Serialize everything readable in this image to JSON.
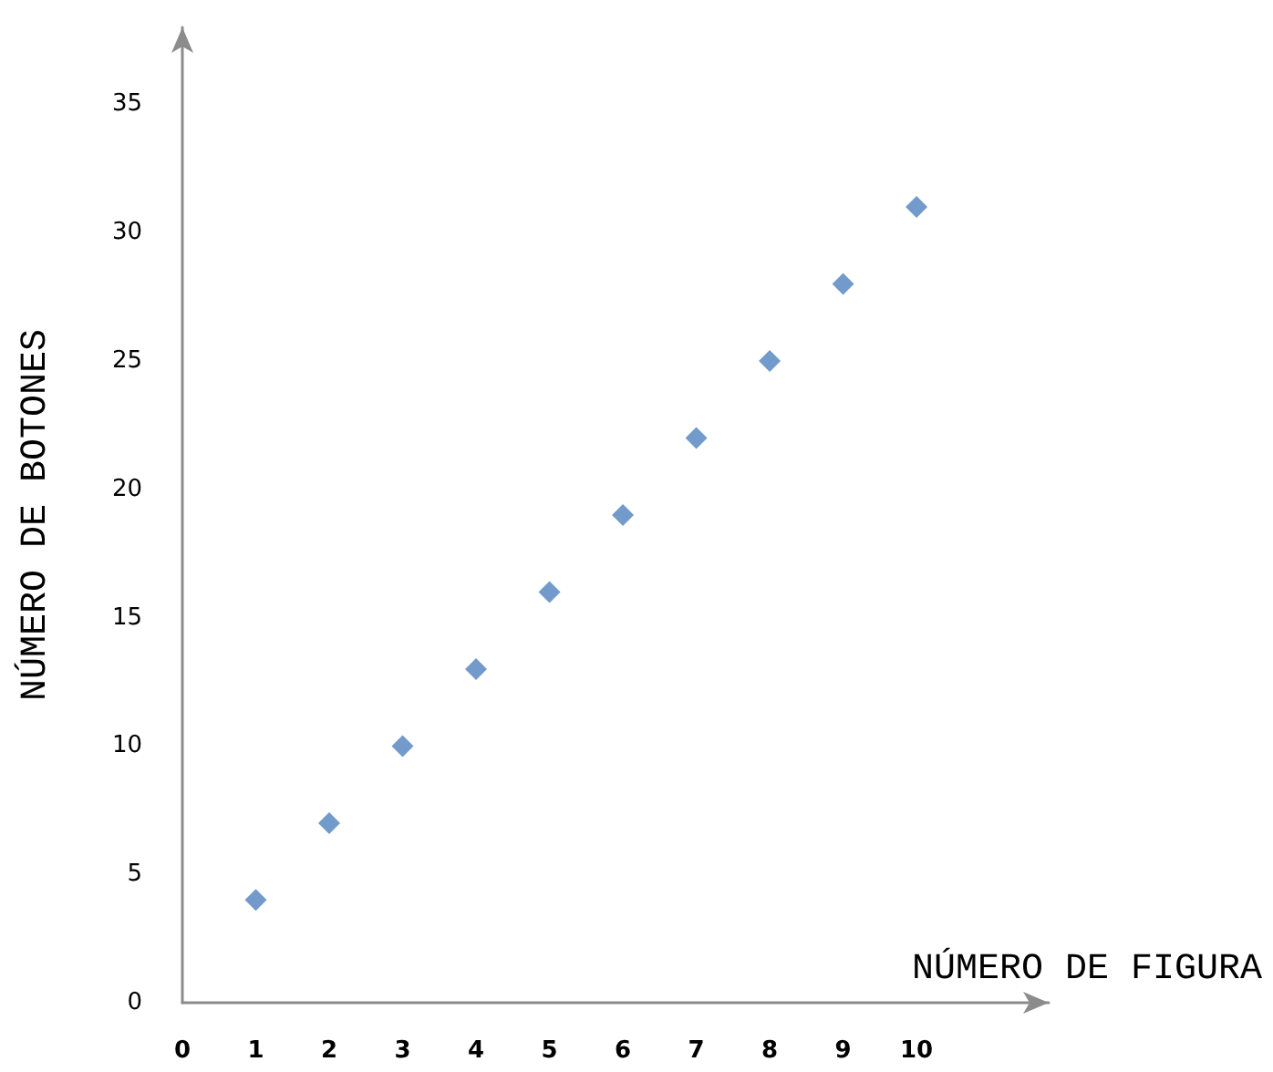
{
  "chart_data": {
    "type": "scatter",
    "xlabel": "NÚMERO DE FIGURA",
    "ylabel": "NÚMERO DE BOTONES",
    "x": [
      1,
      2,
      3,
      4,
      5,
      6,
      7,
      8,
      9,
      10
    ],
    "series": [
      {
        "color": "#4f81bd",
        "values": [
          4,
          7,
          10,
          13,
          16,
          19,
          22,
          25,
          28,
          31
        ]
      }
    ],
    "xlim": [
      0,
      11.8
    ],
    "xticks": [
      0,
      1,
      2,
      3,
      4,
      5,
      6,
      7,
      8,
      9,
      10
    ],
    "ylim": [
      0,
      38
    ],
    "yticks": [
      0,
      5,
      10,
      15,
      20,
      25,
      30,
      35
    ],
    "marker": "diamond",
    "grid": false
  }
}
